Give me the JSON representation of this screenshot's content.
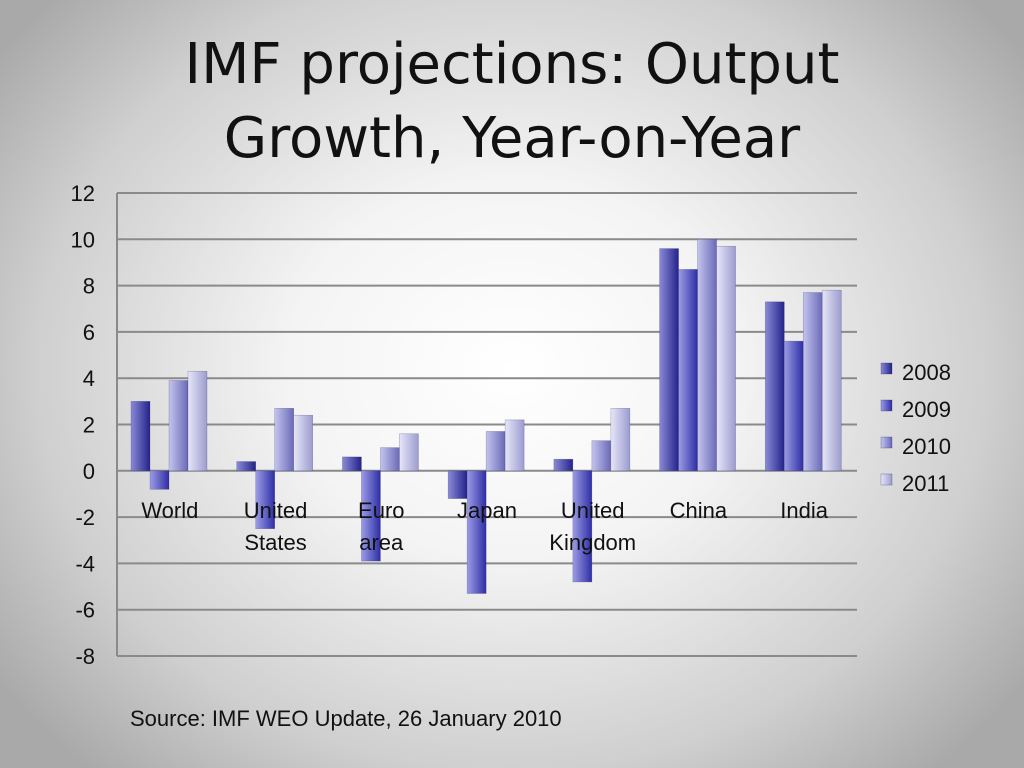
{
  "title_lines": [
    "IMF projections: Output",
    "Growth, Year-on-Year"
  ],
  "source": "Source: IMF WEO Update, 26 January 2010",
  "colors": {
    "2008": {
      "dark": "#23238a",
      "light": "#8a8ad8"
    },
    "2009": {
      "dark": "#2e2ea6",
      "light": "#9c9ce6"
    },
    "2010": {
      "dark": "#6a6ab8",
      "light": "#c4c4ee"
    },
    "2011": {
      "dark": "#9c9cd0",
      "light": "#e6e6f8"
    }
  },
  "chart_data": {
    "type": "bar",
    "categories": [
      [
        "World"
      ],
      [
        "United",
        "States"
      ],
      [
        "Euro",
        "area"
      ],
      [
        "Japan"
      ],
      [
        "United",
        "Kingdom"
      ],
      [
        "China"
      ],
      [
        "India"
      ]
    ],
    "series": [
      {
        "name": "2008",
        "values": [
          3.0,
          0.4,
          0.6,
          -1.2,
          0.5,
          9.6,
          7.3
        ]
      },
      {
        "name": "2009",
        "values": [
          -0.8,
          -2.5,
          -3.9,
          -5.3,
          -4.8,
          8.7,
          5.6
        ]
      },
      {
        "name": "2010",
        "values": [
          3.9,
          2.7,
          1.0,
          1.7,
          1.3,
          10.0,
          7.7
        ]
      },
      {
        "name": "2011",
        "values": [
          4.3,
          2.4,
          1.6,
          2.2,
          2.7,
          9.7,
          7.8
        ]
      }
    ],
    "ylim": [
      -8,
      12
    ],
    "yticks": [
      "12",
      "10",
      "8",
      "6",
      "4",
      "2",
      "0",
      "-2",
      "-4",
      "-6",
      "-8"
    ],
    "grid": true,
    "legend_position": "right"
  }
}
